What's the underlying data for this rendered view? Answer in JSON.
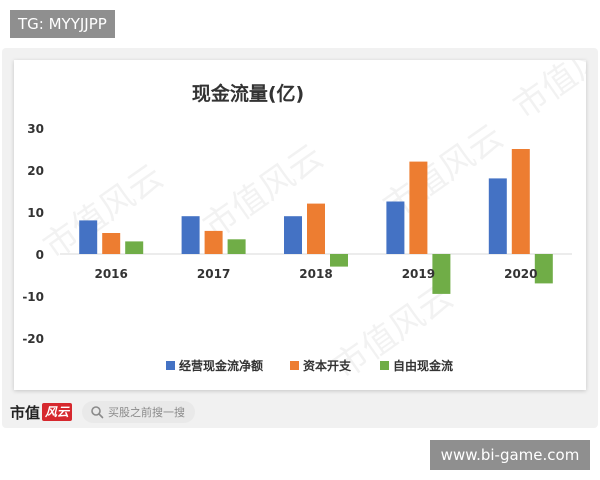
{
  "tg_tag": "TG: MYYJJPP",
  "site_tag": "www.bi-game.com",
  "footer": {
    "brand_name": "市值",
    "brand_badge": "风云",
    "search_text": "买股之前搜一搜"
  },
  "watermark": "市值风云",
  "colors": {
    "series1": "#4472c4",
    "series2": "#ed7d31",
    "series3": "#70ad47"
  },
  "chart_data": {
    "type": "bar",
    "title": "现金流量(亿)",
    "categories": [
      "2016",
      "2017",
      "2018",
      "2019",
      "2020"
    ],
    "series": [
      {
        "name": "经营现金流净额",
        "values": [
          8,
          9,
          9,
          12.5,
          18
        ]
      },
      {
        "name": "资本开支",
        "values": [
          5,
          5.5,
          12,
          22,
          25
        ]
      },
      {
        "name": "自由现金流",
        "values": [
          3,
          3.5,
          -3,
          -9.5,
          -7
        ]
      }
    ],
    "y_ticks": [
      "30",
      "20",
      "10",
      "0",
      "-10",
      "-20"
    ],
    "ylim": [
      -20,
      30
    ],
    "legend_position": "bottom",
    "grid": false
  }
}
